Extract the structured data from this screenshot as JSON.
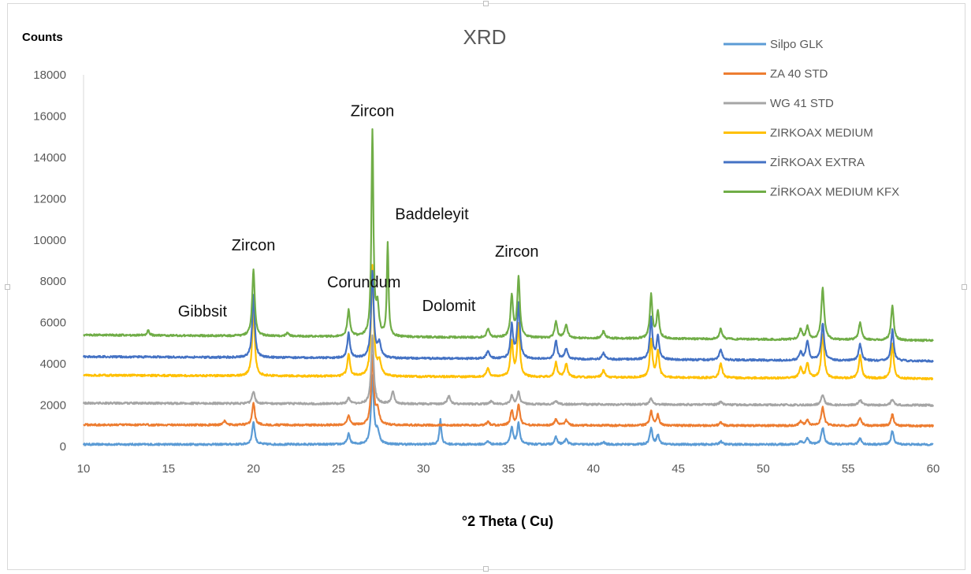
{
  "chart_data": {
    "type": "line",
    "title": "XRD",
    "xlabel": "°2 Theta  ( Cu)",
    "ylabel": "Counts",
    "xlim": [
      10,
      60
    ],
    "ylim": [
      0,
      18000
    ],
    "xticks": [
      "10",
      "15",
      "20",
      "25",
      "30",
      "35",
      "40",
      "45",
      "50",
      "55",
      "60"
    ],
    "yticks": [
      "0",
      "2000",
      "4000",
      "6000",
      "8000",
      "10000",
      "12000",
      "14000",
      "16000",
      "18000"
    ],
    "legend_position": "top-right",
    "grid": false,
    "series": [
      {
        "name": "Silpo GLK",
        "color": "#5b9bd5",
        "baseline": 100,
        "peaks": [
          [
            20.0,
            1100,
            0.09
          ],
          [
            25.6,
            500,
            0.09
          ],
          [
            27.0,
            3300,
            0.09
          ],
          [
            27.3,
            600,
            0.12
          ],
          [
            31.0,
            1200,
            0.07
          ],
          [
            33.8,
            150,
            0.1
          ],
          [
            35.2,
            800,
            0.09
          ],
          [
            35.6,
            1000,
            0.09
          ],
          [
            37.8,
            350,
            0.09
          ],
          [
            38.4,
            250,
            0.1
          ],
          [
            40.6,
            100,
            0.1
          ],
          [
            43.4,
            800,
            0.09
          ],
          [
            43.8,
            450,
            0.09
          ],
          [
            47.5,
            150,
            0.1
          ],
          [
            52.2,
            150,
            0.1
          ],
          [
            52.6,
            300,
            0.1
          ],
          [
            53.5,
            800,
            0.1
          ],
          [
            55.7,
            300,
            0.1
          ],
          [
            57.6,
            650,
            0.09
          ]
        ]
      },
      {
        "name": "ZA 40 STD",
        "color": "#ed7d31",
        "baseline": 1050,
        "peaks": [
          [
            18.3,
            200,
            0.08
          ],
          [
            20.0,
            1100,
            0.09
          ],
          [
            25.6,
            450,
            0.09
          ],
          [
            27.0,
            3300,
            0.09
          ],
          [
            27.3,
            700,
            0.12
          ],
          [
            33.8,
            150,
            0.1
          ],
          [
            35.2,
            700,
            0.09
          ],
          [
            35.6,
            1000,
            0.09
          ],
          [
            37.8,
            300,
            0.09
          ],
          [
            38.4,
            250,
            0.1
          ],
          [
            43.4,
            700,
            0.09
          ],
          [
            43.8,
            500,
            0.09
          ],
          [
            47.5,
            150,
            0.1
          ],
          [
            52.2,
            200,
            0.1
          ],
          [
            52.6,
            250,
            0.1
          ],
          [
            53.5,
            900,
            0.1
          ],
          [
            55.7,
            400,
            0.1
          ],
          [
            57.6,
            550,
            0.09
          ]
        ]
      },
      {
        "name": "WG 41 STD",
        "color": "#a5a5a5",
        "baseline": 2100,
        "peaks": [
          [
            20.0,
            600,
            0.09
          ],
          [
            25.6,
            300,
            0.09
          ],
          [
            27.0,
            3300,
            0.09
          ],
          [
            28.2,
            600,
            0.1
          ],
          [
            31.5,
            400,
            0.1
          ],
          [
            34.0,
            150,
            0.1
          ],
          [
            35.2,
            400,
            0.09
          ],
          [
            35.6,
            600,
            0.09
          ],
          [
            37.8,
            150,
            0.1
          ],
          [
            43.4,
            300,
            0.1
          ],
          [
            47.5,
            150,
            0.1
          ],
          [
            53.5,
            500,
            0.1
          ],
          [
            55.7,
            250,
            0.1
          ],
          [
            57.6,
            300,
            0.1
          ]
        ]
      },
      {
        "name": "ZIRKOAX MEDIUM",
        "color": "#ffc000",
        "baseline": 3450,
        "peaks": [
          [
            20.0,
            3200,
            0.09
          ],
          [
            25.6,
            1100,
            0.09
          ],
          [
            27.0,
            5300,
            0.09
          ],
          [
            27.4,
            700,
            0.12
          ],
          [
            33.8,
            400,
            0.1
          ],
          [
            35.2,
            1700,
            0.09
          ],
          [
            35.6,
            2500,
            0.09
          ],
          [
            37.8,
            700,
            0.09
          ],
          [
            38.4,
            650,
            0.1
          ],
          [
            40.6,
            350,
            0.1
          ],
          [
            43.4,
            1800,
            0.09
          ],
          [
            43.8,
            1300,
            0.09
          ],
          [
            47.5,
            700,
            0.1
          ],
          [
            52.2,
            500,
            0.1
          ],
          [
            52.6,
            700,
            0.1
          ],
          [
            53.5,
            2100,
            0.1
          ],
          [
            55.7,
            1100,
            0.1
          ],
          [
            57.6,
            1700,
            0.09
          ]
        ]
      },
      {
        "name": "ZİRKOAX EXTRA",
        "color": "#4472c4",
        "baseline": 4350,
        "peaks": [
          [
            20.0,
            3000,
            0.09
          ],
          [
            25.6,
            1200,
            0.09
          ],
          [
            27.0,
            4200,
            0.09
          ],
          [
            27.4,
            700,
            0.12
          ],
          [
            33.8,
            400,
            0.1
          ],
          [
            35.2,
            1600,
            0.09
          ],
          [
            35.6,
            2700,
            0.09
          ],
          [
            37.8,
            900,
            0.09
          ],
          [
            38.4,
            500,
            0.1
          ],
          [
            40.6,
            300,
            0.1
          ],
          [
            43.4,
            2000,
            0.09
          ],
          [
            43.8,
            1100,
            0.09
          ],
          [
            47.5,
            500,
            0.1
          ],
          [
            52.2,
            400,
            0.1
          ],
          [
            52.6,
            900,
            0.1
          ],
          [
            53.5,
            1800,
            0.1
          ],
          [
            55.7,
            800,
            0.1
          ],
          [
            57.6,
            1500,
            0.09
          ]
        ]
      },
      {
        "name": "ZİRKOAX MEDIUM KFX",
        "color": "#70ad47",
        "baseline": 5400,
        "peaks": [
          [
            13.8,
            250,
            0.08
          ],
          [
            20.0,
            3200,
            0.09
          ],
          [
            22.0,
            150,
            0.1
          ],
          [
            25.6,
            1300,
            0.09
          ],
          [
            27.0,
            9900,
            0.07
          ],
          [
            27.3,
            1400,
            0.1
          ],
          [
            27.9,
            4500,
            0.06
          ],
          [
            33.8,
            400,
            0.1
          ],
          [
            35.2,
            2000,
            0.09
          ],
          [
            35.6,
            2900,
            0.09
          ],
          [
            37.8,
            800,
            0.09
          ],
          [
            38.4,
            650,
            0.1
          ],
          [
            40.6,
            350,
            0.1
          ],
          [
            43.4,
            2100,
            0.09
          ],
          [
            43.8,
            1300,
            0.09
          ],
          [
            47.5,
            500,
            0.1
          ],
          [
            52.2,
            500,
            0.1
          ],
          [
            52.6,
            600,
            0.1
          ],
          [
            53.5,
            2500,
            0.1
          ],
          [
            55.7,
            850,
            0.1
          ],
          [
            57.6,
            1700,
            0.09
          ]
        ]
      }
    ],
    "annotations": [
      {
        "text": "Zircon",
        "x": 20.0,
        "y": 9500
      },
      {
        "text": "Gibbsit",
        "x": 17.0,
        "y": 6300
      },
      {
        "text": "Zircon",
        "x": 27.0,
        "y": 16000
      },
      {
        "text": "Corundum",
        "x": 26.5,
        "y": 7700
      },
      {
        "text": "Baddeleyit",
        "x": 30.5,
        "y": 11000
      },
      {
        "text": "Dolomit",
        "x": 31.5,
        "y": 6550
      },
      {
        "text": "Zircon",
        "x": 35.5,
        "y": 9200
      }
    ]
  }
}
